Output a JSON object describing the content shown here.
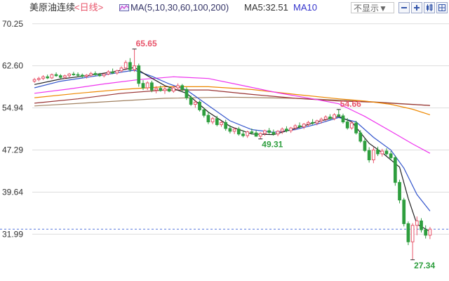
{
  "header": {
    "title": "美原油连续",
    "period": "<日线>",
    "ma_list": "MA(5,10,30,60,100,200)",
    "ma5_text": "MA5:32.51",
    "ma10_text": "MA10",
    "dropdown_label": "不显示▼"
  },
  "colors": {
    "up": "#e8546a",
    "down": "#2e9e3e",
    "ma5": "#222222",
    "ma10": "#3355cc",
    "ma30": "#ee33ee",
    "ma60": "#ee8800",
    "ma100": "#993333",
    "ma200": "#a08060",
    "grid": "#dddddd",
    "price_line": "#5577dd",
    "annotation_high": "#e8546a",
    "annotation_low": "#2e9e3e"
  },
  "chart_data": {
    "type": "candlestick",
    "title": "美原油连续",
    "y_ticks": [
      "70.25",
      "62.60",
      "54.94",
      "47.29",
      "39.64",
      "31.99"
    ],
    "ylim": [
      24.5,
      71.5
    ],
    "current_price_line": 32.9,
    "annotations": [
      {
        "label": "65.65",
        "value": 65.65,
        "index": 23,
        "kind": "high"
      },
      {
        "label": "54.66",
        "value": 54.66,
        "index": 70,
        "kind": "high"
      },
      {
        "label": "49.31",
        "value": 49.31,
        "index": 52,
        "kind": "low"
      },
      {
        "label": "27.34",
        "value": 27.34,
        "index": 87,
        "kind": "low"
      }
    ],
    "candles": [
      [
        59.8,
        60.4,
        59.5,
        60.1
      ],
      [
        60.1,
        60.6,
        59.8,
        60.3
      ],
      [
        60.3,
        60.9,
        60.0,
        60.6
      ],
      [
        60.6,
        61.0,
        60.2,
        60.4
      ],
      [
        60.4,
        61.2,
        60.2,
        61.0
      ],
      [
        61.0,
        61.4,
        60.6,
        60.8
      ],
      [
        60.8,
        61.1,
        60.3,
        60.5
      ],
      [
        60.5,
        61.0,
        60.2,
        60.8
      ],
      [
        60.8,
        61.3,
        60.5,
        61.1
      ],
      [
        61.1,
        61.5,
        60.8,
        61.0
      ],
      [
        61.0,
        61.4,
        60.6,
        60.9
      ],
      [
        60.9,
        61.2,
        60.4,
        60.7
      ],
      [
        60.7,
        61.1,
        60.3,
        60.9
      ],
      [
        60.9,
        61.5,
        60.6,
        61.2
      ],
      [
        61.2,
        61.6,
        60.8,
        61.0
      ],
      [
        61.0,
        61.3,
        60.6,
        60.8
      ],
      [
        60.8,
        61.2,
        60.5,
        61.1
      ],
      [
        61.1,
        61.8,
        60.9,
        61.5
      ],
      [
        61.5,
        62.1,
        61.1,
        61.3
      ],
      [
        61.3,
        61.9,
        61.0,
        61.7
      ],
      [
        61.7,
        62.5,
        61.4,
        62.2
      ],
      [
        62.2,
        63.6,
        61.8,
        63.2
      ],
      [
        63.2,
        64.0,
        61.5,
        61.9
      ],
      [
        61.9,
        65.65,
        61.5,
        62.6
      ],
      [
        62.6,
        63.0,
        58.8,
        59.4
      ],
      [
        59.4,
        60.0,
        58.2,
        58.6
      ],
      [
        58.6,
        59.8,
        58.2,
        59.5
      ],
      [
        59.5,
        59.9,
        57.8,
        58.2
      ],
      [
        58.2,
        58.9,
        57.6,
        58.5
      ],
      [
        58.5,
        59.0,
        57.9,
        58.1
      ],
      [
        58.1,
        58.7,
        57.5,
        58.4
      ],
      [
        58.4,
        58.8,
        57.8,
        58.0
      ],
      [
        58.0,
        58.9,
        57.7,
        58.6
      ],
      [
        58.6,
        59.4,
        58.2,
        59.0
      ],
      [
        59.0,
        59.3,
        57.9,
        58.3
      ],
      [
        58.3,
        58.7,
        56.4,
        56.8
      ],
      [
        56.8,
        57.2,
        55.3,
        55.6
      ],
      [
        55.6,
        56.4,
        55.0,
        56.0
      ],
      [
        56.0,
        56.3,
        54.3,
        54.6
      ],
      [
        54.6,
        55.0,
        53.2,
        53.6
      ],
      [
        53.6,
        54.2,
        52.0,
        52.4
      ],
      [
        52.4,
        53.3,
        52.0,
        53.0
      ],
      [
        53.0,
        53.5,
        51.6,
        51.9
      ],
      [
        51.9,
        52.6,
        51.5,
        52.3
      ],
      [
        52.3,
        52.8,
        50.8,
        51.2
      ],
      [
        51.2,
        51.8,
        50.3,
        50.7
      ],
      [
        50.7,
        51.4,
        50.2,
        51.1
      ],
      [
        51.1,
        51.5,
        49.9,
        50.2
      ],
      [
        50.2,
        50.9,
        49.6,
        49.9
      ],
      [
        49.9,
        50.8,
        49.5,
        50.6
      ],
      [
        50.6,
        51.2,
        50.1,
        50.4
      ],
      [
        50.4,
        50.9,
        49.7,
        49.8
      ],
      [
        49.8,
        50.5,
        49.31,
        50.3
      ],
      [
        50.3,
        51.0,
        49.9,
        50.8
      ],
      [
        50.8,
        51.3,
        50.2,
        50.5
      ],
      [
        50.5,
        51.0,
        49.9,
        50.2
      ],
      [
        50.2,
        50.9,
        49.8,
        50.7
      ],
      [
        50.7,
        51.4,
        50.2,
        51.1
      ],
      [
        51.1,
        51.6,
        50.5,
        50.8
      ],
      [
        50.8,
        51.5,
        50.4,
        51.3
      ],
      [
        51.3,
        52.0,
        50.9,
        51.7
      ],
      [
        51.7,
        52.3,
        51.2,
        51.5
      ],
      [
        51.5,
        52.2,
        51.1,
        52.0
      ],
      [
        52.0,
        52.6,
        51.6,
        52.3
      ],
      [
        52.3,
        52.9,
        51.9,
        52.2
      ],
      [
        52.2,
        52.8,
        51.8,
        52.6
      ],
      [
        52.6,
        53.2,
        52.1,
        52.9
      ],
      [
        52.9,
        53.6,
        52.5,
        53.3
      ],
      [
        53.3,
        53.8,
        52.8,
        53.0
      ],
      [
        53.0,
        54.0,
        52.7,
        53.7
      ],
      [
        53.7,
        54.66,
        53.2,
        53.5
      ],
      [
        53.5,
        53.9,
        52.1,
        52.4
      ],
      [
        52.4,
        53.1,
        51.0,
        51.3
      ],
      [
        51.3,
        52.5,
        51.0,
        52.2
      ],
      [
        52.2,
        52.6,
        50.1,
        50.4
      ],
      [
        50.4,
        50.9,
        48.6,
        48.9
      ],
      [
        48.9,
        49.4,
        46.9,
        47.2
      ],
      [
        47.2,
        47.8,
        45.0,
        45.5
      ],
      [
        45.5,
        47.8,
        44.9,
        47.3
      ],
      [
        47.3,
        47.9,
        46.2,
        46.6
      ],
      [
        46.6,
        47.5,
        46.1,
        47.1
      ],
      [
        47.1,
        47.6,
        46.3,
        46.6
      ],
      [
        46.6,
        47.1,
        45.4,
        45.9
      ],
      [
        45.9,
        46.3,
        40.8,
        41.4
      ],
      [
        41.4,
        41.9,
        37.6,
        38.2
      ],
      [
        38.2,
        38.6,
        33.4,
        33.9
      ],
      [
        33.9,
        34.3,
        30.0,
        30.6
      ],
      [
        30.6,
        34.0,
        27.34,
        33.6
      ],
      [
        33.6,
        35.2,
        31.8,
        34.4
      ],
      [
        34.4,
        34.9,
        32.3,
        32.8
      ],
      [
        32.8,
        33.6,
        31.2,
        31.8
      ],
      [
        31.8,
        33.3,
        31.1,
        32.9
      ]
    ],
    "ma_lines": {
      "ma5": [
        [
          0,
          59.2
        ],
        [
          6,
          60.2
        ],
        [
          12,
          60.8
        ],
        [
          18,
          61.5
        ],
        [
          23,
          62.3
        ],
        [
          26,
          60.8
        ],
        [
          30,
          59.0
        ],
        [
          35,
          57.6
        ],
        [
          40,
          54.2
        ],
        [
          45,
          51.6
        ],
        [
          50,
          50.2
        ],
        [
          55,
          50.1
        ],
        [
          60,
          51.2
        ],
        [
          65,
          52.4
        ],
        [
          70,
          53.4
        ],
        [
          73,
          52.4
        ],
        [
          77,
          48.5
        ],
        [
          80,
          46.8
        ],
        [
          84,
          44.2
        ],
        [
          86,
          38.5
        ],
        [
          88,
          33.8
        ],
        [
          91,
          32.5
        ]
      ],
      "ma10": [
        [
          0,
          58.6
        ],
        [
          6,
          59.8
        ],
        [
          12,
          60.5
        ],
        [
          18,
          61.2
        ],
        [
          23,
          61.8
        ],
        [
          27,
          60.7
        ],
        [
          31,
          59.3
        ],
        [
          35,
          58.2
        ],
        [
          40,
          55.4
        ],
        [
          45,
          52.6
        ],
        [
          50,
          51.0
        ],
        [
          55,
          50.5
        ],
        [
          60,
          51.0
        ],
        [
          65,
          52.0
        ],
        [
          70,
          53.2
        ],
        [
          74,
          52.4
        ],
        [
          78,
          49.6
        ],
        [
          82,
          47.3
        ],
        [
          85,
          44.0
        ],
        [
          88,
          39.2
        ],
        [
          91,
          36.2
        ]
      ],
      "ma30": [
        [
          0,
          57.6
        ],
        [
          8,
          58.4
        ],
        [
          16,
          59.3
        ],
        [
          24,
          60.1
        ],
        [
          32,
          60.6
        ],
        [
          40,
          60.3
        ],
        [
          48,
          59.0
        ],
        [
          56,
          57.7
        ],
        [
          64,
          56.6
        ],
        [
          70,
          55.7
        ],
        [
          76,
          53.4
        ],
        [
          82,
          50.7
        ],
        [
          87,
          48.4
        ],
        [
          91,
          46.7
        ]
      ],
      "ma60": [
        [
          0,
          56.8
        ],
        [
          10,
          57.6
        ],
        [
          20,
          58.3
        ],
        [
          30,
          58.8
        ],
        [
          40,
          58.8
        ],
        [
          50,
          58.3
        ],
        [
          60,
          57.4
        ],
        [
          70,
          56.6
        ],
        [
          76,
          56.2
        ],
        [
          82,
          55.6
        ],
        [
          87,
          54.7
        ],
        [
          91,
          53.7
        ]
      ],
      "ma100": [
        [
          0,
          55.8
        ],
        [
          10,
          56.6
        ],
        [
          20,
          57.6
        ],
        [
          30,
          58.2
        ],
        [
          40,
          58.2
        ],
        [
          50,
          57.4
        ],
        [
          60,
          56.7
        ],
        [
          70,
          56.2
        ],
        [
          78,
          56.0
        ],
        [
          84,
          55.7
        ],
        [
          91,
          55.4
        ]
      ],
      "ma200": [
        [
          0,
          55.3
        ],
        [
          15,
          56.0
        ],
        [
          30,
          56.7
        ],
        [
          45,
          56.9
        ],
        [
          60,
          56.7
        ],
        [
          75,
          56.2
        ],
        [
          91,
          55.4
        ]
      ]
    }
  }
}
